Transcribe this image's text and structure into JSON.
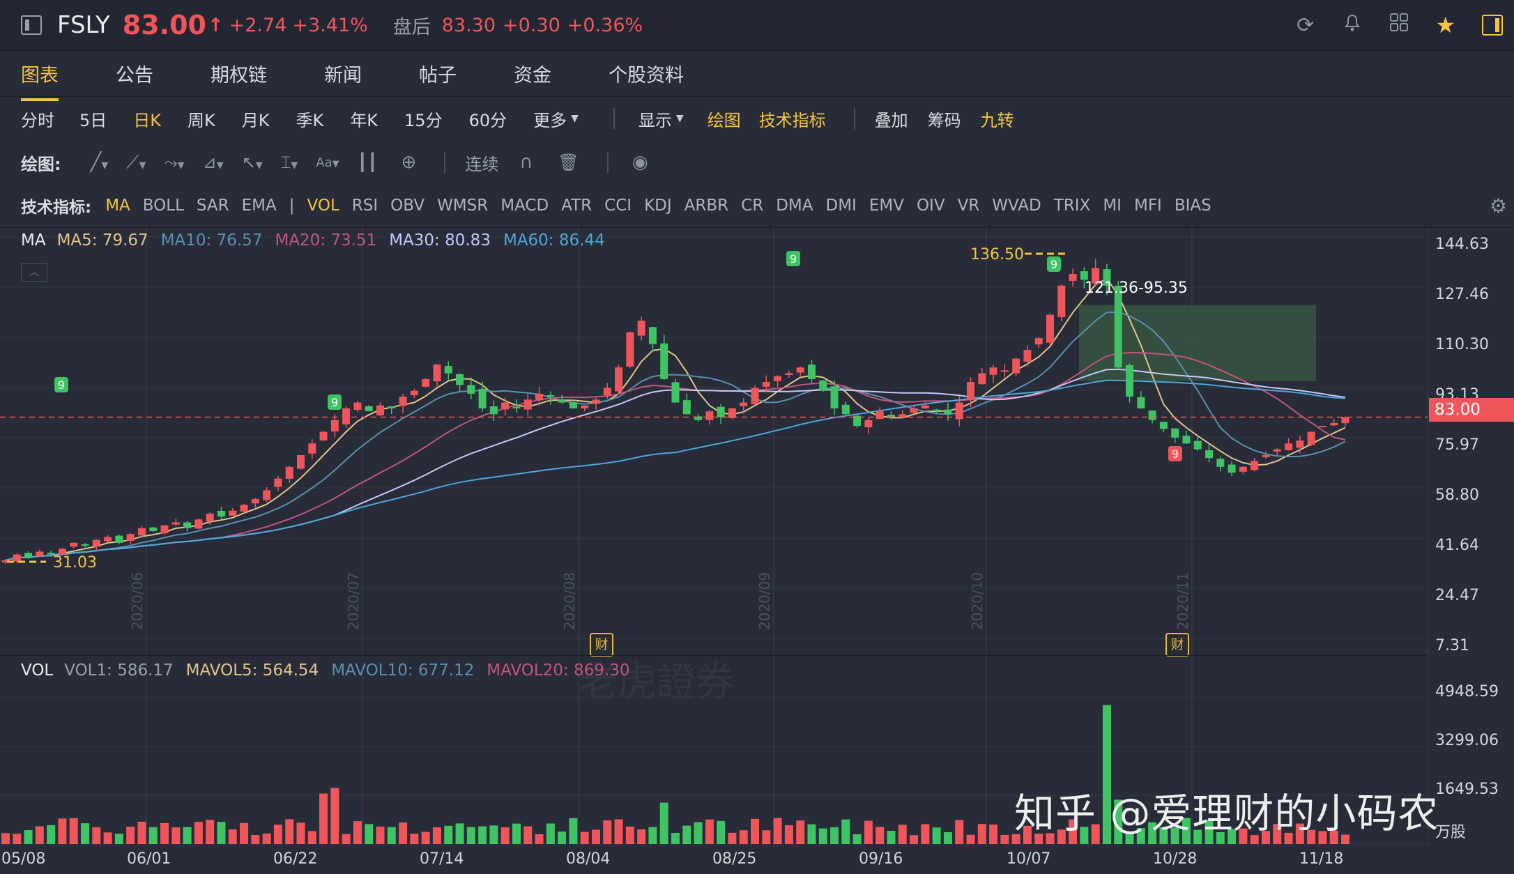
{
  "header": {
    "symbol": "FSLY",
    "price": "83.00",
    "arrow": "↑",
    "change": "+2.74",
    "change_pct": "+3.41%",
    "after_hours_label": "盘后",
    "after_hours_price": "83.30",
    "after_hours_change": "+0.30",
    "after_hours_pct": "+0.36%"
  },
  "tabs": [
    "图表",
    "公告",
    "期权链",
    "新闻",
    "帖子",
    "资金",
    "个股资料"
  ],
  "periods": [
    "分时",
    "5日",
    "日K",
    "周K",
    "月K",
    "季K",
    "年K",
    "15分",
    "60分",
    "更多"
  ],
  "view_menu": [
    "显示",
    "绘图",
    "技术指标",
    "叠加",
    "筹码",
    "九转"
  ],
  "draw_toolbar": {
    "label": "绘图:",
    "continuous": "连续",
    "text_tool": "Aa"
  },
  "indicators_label": "技术指标:",
  "indicators": [
    "MA",
    "BOLL",
    "SAR",
    "EMA",
    "|",
    "VOL",
    "RSI",
    "OBV",
    "WMSR",
    "MACD",
    "ATR",
    "CCI",
    "KDJ",
    "ARBR",
    "CR",
    "DMA",
    "DMI",
    "EMV",
    "OIV",
    "VR",
    "WVAD",
    "TRIX",
    "MI",
    "MFI",
    "BIAS"
  ],
  "ma_legend": {
    "name": "MA",
    "items": [
      {
        "label": "MA5: 79.67",
        "color": "#e0c48a"
      },
      {
        "label": "MA10: 76.57",
        "color": "#5b8fb0"
      },
      {
        "label": "MA20: 73.51",
        "color": "#c4537f"
      },
      {
        "label": "MA30: 80.83",
        "color": "#c6c6f5"
      },
      {
        "label": "MA60: 86.44",
        "color": "#4ea6d6"
      }
    ]
  },
  "vol_legend": {
    "name": "VOL",
    "items": [
      {
        "label": "VOL1: 586.17",
        "color": "#9aa0ab"
      },
      {
        "label": "MAVOL5: 564.54",
        "color": "#e0c48a"
      },
      {
        "label": "MAVOL10: 677.12",
        "color": "#5b8fb0"
      },
      {
        "label": "MAVOL20: 869.30",
        "color": "#c4537f"
      }
    ]
  },
  "price_axis": [
    "144.63",
    "127.46",
    "110.30",
    "93.13",
    "75.97",
    "58.80",
    "41.64",
    "24.47",
    "7.31"
  ],
  "current_price_tag": "83.00",
  "vol_axis": [
    "4948.59",
    "3299.06",
    "1649.53"
  ],
  "vol_unit": "万股",
  "x_axis": [
    "05/08",
    "06/01",
    "06/22",
    "07/14",
    "08/04",
    "08/25",
    "09/16",
    "10/07",
    "10/28",
    "11/18"
  ],
  "month_markers": [
    "2020/06",
    "2020/07",
    "2020/08",
    "2020/09",
    "2020/10",
    "2020/11"
  ],
  "annotations": {
    "high": "136.50",
    "low": "31.03",
    "range_label": "121.36-95.35",
    "earnings_badge": "财",
    "nine_badge": "9"
  },
  "watermark_text": "知乎 @爱理财的小码农",
  "broker_watermark": "老虎證券",
  "colors": {
    "up": "#f0555a",
    "down": "#3fc463",
    "accent": "#f5c342",
    "background": "#272c38"
  },
  "chart_data": {
    "type": "candlestick",
    "ylim": [
      7.31,
      144.63
    ],
    "series_ma": [
      {
        "name": "MA5",
        "last": 79.67
      },
      {
        "name": "MA10",
        "last": 76.57
      },
      {
        "name": "MA20",
        "last": 73.51
      },
      {
        "name": "MA30",
        "last": 80.83
      },
      {
        "name": "MA60",
        "last": 86.44
      }
    ],
    "close": [
      34,
      36,
      35,
      37,
      36,
      38,
      40,
      39,
      41,
      42,
      40,
      43,
      45,
      44,
      46,
      47,
      45,
      48,
      50,
      49,
      51,
      53,
      55,
      58,
      62,
      66,
      70,
      74,
      78,
      82,
      86,
      88,
      85,
      87,
      86,
      90,
      92,
      96,
      101,
      98,
      94,
      91,
      86,
      84,
      88,
      86,
      89,
      91,
      90,
      88,
      86,
      87,
      89,
      93,
      100,
      112,
      116,
      108,
      96,
      88,
      84,
      82,
      85,
      83,
      86,
      88,
      93,
      95,
      97,
      98,
      100,
      96,
      92,
      86,
      84,
      80,
      82,
      85,
      83,
      84,
      86,
      87,
      85,
      84,
      88,
      95,
      98,
      100,
      99,
      103,
      106,
      110,
      118,
      128,
      132,
      130,
      134,
      128,
      100,
      90,
      86,
      82,
      79,
      76,
      74,
      72,
      69,
      66,
      64,
      66,
      68,
      70,
      72,
      74,
      75,
      78,
      80,
      81,
      83
    ],
    "volume_scale_max": 4948.59
  }
}
